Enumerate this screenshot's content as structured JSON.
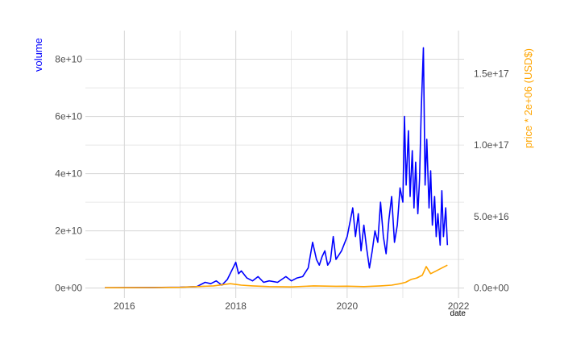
{
  "chart_data": {
    "type": "line",
    "title": "",
    "xlabel": "date",
    "ylabel": "volume",
    "y2label": "price * 2e+06  (USD$)",
    "x_range": [
      2015.3,
      2022.1
    ],
    "x_ticks": [
      2016,
      2018,
      2020,
      2022
    ],
    "x_tick_labels": [
      "2016",
      "2018",
      "2020",
      "2022"
    ],
    "ylim": [
      -3500000000.0,
      90000000000.0
    ],
    "y_ticks": [
      0,
      20000000000.0,
      40000000000.0,
      60000000000.0,
      80000000000.0
    ],
    "y_tick_labels": [
      "0e+00",
      "2e+10",
      "4e+10",
      "6e+10",
      "8e+10"
    ],
    "y2_ticks": [
      0,
      5e+16,
      1e+17,
      1.5e+17
    ],
    "y2_tick_labels": [
      "0.0e+00",
      "5.0e+16",
      "1.0e+17",
      "1.5e+17"
    ],
    "y2_scale": 2000000.0,
    "grid": true,
    "colors": {
      "volume": "#0000ff",
      "price": "#ffa500",
      "grid": "#d9d9d9"
    },
    "series": [
      {
        "name": "volume",
        "axis": "left",
        "color": "#0000ff",
        "x": [
          2015.65,
          2016.0,
          2016.5,
          2017.0,
          2017.3,
          2017.45,
          2017.55,
          2017.65,
          2017.75,
          2017.85,
          2017.95,
          2018.0,
          2018.05,
          2018.1,
          2018.2,
          2018.3,
          2018.4,
          2018.5,
          2018.6,
          2018.75,
          2018.9,
          2019.0,
          2019.1,
          2019.2,
          2019.3,
          2019.38,
          2019.45,
          2019.5,
          2019.55,
          2019.6,
          2019.65,
          2019.7,
          2019.75,
          2019.8,
          2019.9,
          2020.0,
          2020.1,
          2020.15,
          2020.2,
          2020.25,
          2020.3,
          2020.35,
          2020.4,
          2020.45,
          2020.5,
          2020.55,
          2020.6,
          2020.65,
          2020.7,
          2020.75,
          2020.8,
          2020.85,
          2020.9,
          2020.95,
          2021.0,
          2021.03,
          2021.06,
          2021.1,
          2021.13,
          2021.17,
          2021.2,
          2021.23,
          2021.27,
          2021.3,
          2021.33,
          2021.37,
          2021.4,
          2021.43,
          2021.47,
          2021.5,
          2021.53,
          2021.57,
          2021.6,
          2021.63,
          2021.67,
          2021.7,
          2021.73,
          2021.77,
          2021.8
        ],
        "values": [
          100000000.0,
          150000000.0,
          200000000.0,
          300000000.0,
          500000000.0,
          2000000000.0,
          1500000000.0,
          2500000000.0,
          1000000000.0,
          3000000000.0,
          7000000000.0,
          9000000000.0,
          5000000000.0,
          6000000000.0,
          3500000000.0,
          2500000000.0,
          4000000000.0,
          2000000000.0,
          2500000000.0,
          2000000000.0,
          4000000000.0,
          2500000000.0,
          3500000000.0,
          4000000000.0,
          7000000000.0,
          16000000000.0,
          10000000000.0,
          8000000000.0,
          11000000000.0,
          13000000000.0,
          8000000000.0,
          9500000000.0,
          18000000000.0,
          10000000000.0,
          13000000000.0,
          18000000000.0,
          28000000000.0,
          18000000000.0,
          26000000000.0,
          13000000000.0,
          22000000000.0,
          14000000000.0,
          7000000000.0,
          13000000000.0,
          20000000000.0,
          16000000000.0,
          30000000000.0,
          18000000000.0,
          12000000000.0,
          24000000000.0,
          32000000000.0,
          16000000000.0,
          22000000000.0,
          35000000000.0,
          30000000000.0,
          60000000000.0,
          36000000000.0,
          55000000000.0,
          32000000000.0,
          48000000000.0,
          28000000000.0,
          44000000000.0,
          26000000000.0,
          38000000000.0,
          62000000000.0,
          84000000000.0,
          36000000000.0,
          52000000000.0,
          28000000000.0,
          41000000000.0,
          22000000000.0,
          32000000000.0,
          18000000000.0,
          26000000000.0,
          15000000000.0,
          34000000000.0,
          18000000000.0,
          28000000000.0,
          15000000000.0
        ]
      },
      {
        "name": "price * 2e+06  (USD$)",
        "axis": "right",
        "color": "#ffa500",
        "x": [
          2015.65,
          2016.0,
          2016.5,
          2017.0,
          2017.3,
          2017.6,
          2017.9,
          2018.0,
          2018.1,
          2018.3,
          2018.6,
          2019.0,
          2019.4,
          2019.8,
          2020.0,
          2020.3,
          2020.6,
          2020.8,
          2020.95,
          2021.05,
          2021.15,
          2021.25,
          2021.35,
          2021.42,
          2021.5,
          2021.6,
          2021.7,
          2021.8
        ],
        "values": [
          200000000000000.0,
          200000000000000.0,
          300000000000000.0,
          500000000000000.0,
          1000000000000000.0,
          1500000000000000.0,
          3000000000000000.0,
          2500000000000000.0,
          2000000000000000.0,
          1500000000000000.0,
          1000000000000000.0,
          800000000000000.0,
          1500000000000000.0,
          1200000000000000.0,
          1300000000000000.0,
          1000000000000000.0,
          1500000000000000.0,
          2000000000000000.0,
          3000000000000000.0,
          4000000000000000.0,
          6000000000000000.0,
          7000000000000000.0,
          9000000000000000.0,
          1.5e+16,
          1e+16,
          1.2e+16,
          1.4e+16,
          1.6e+16
        ]
      }
    ]
  }
}
